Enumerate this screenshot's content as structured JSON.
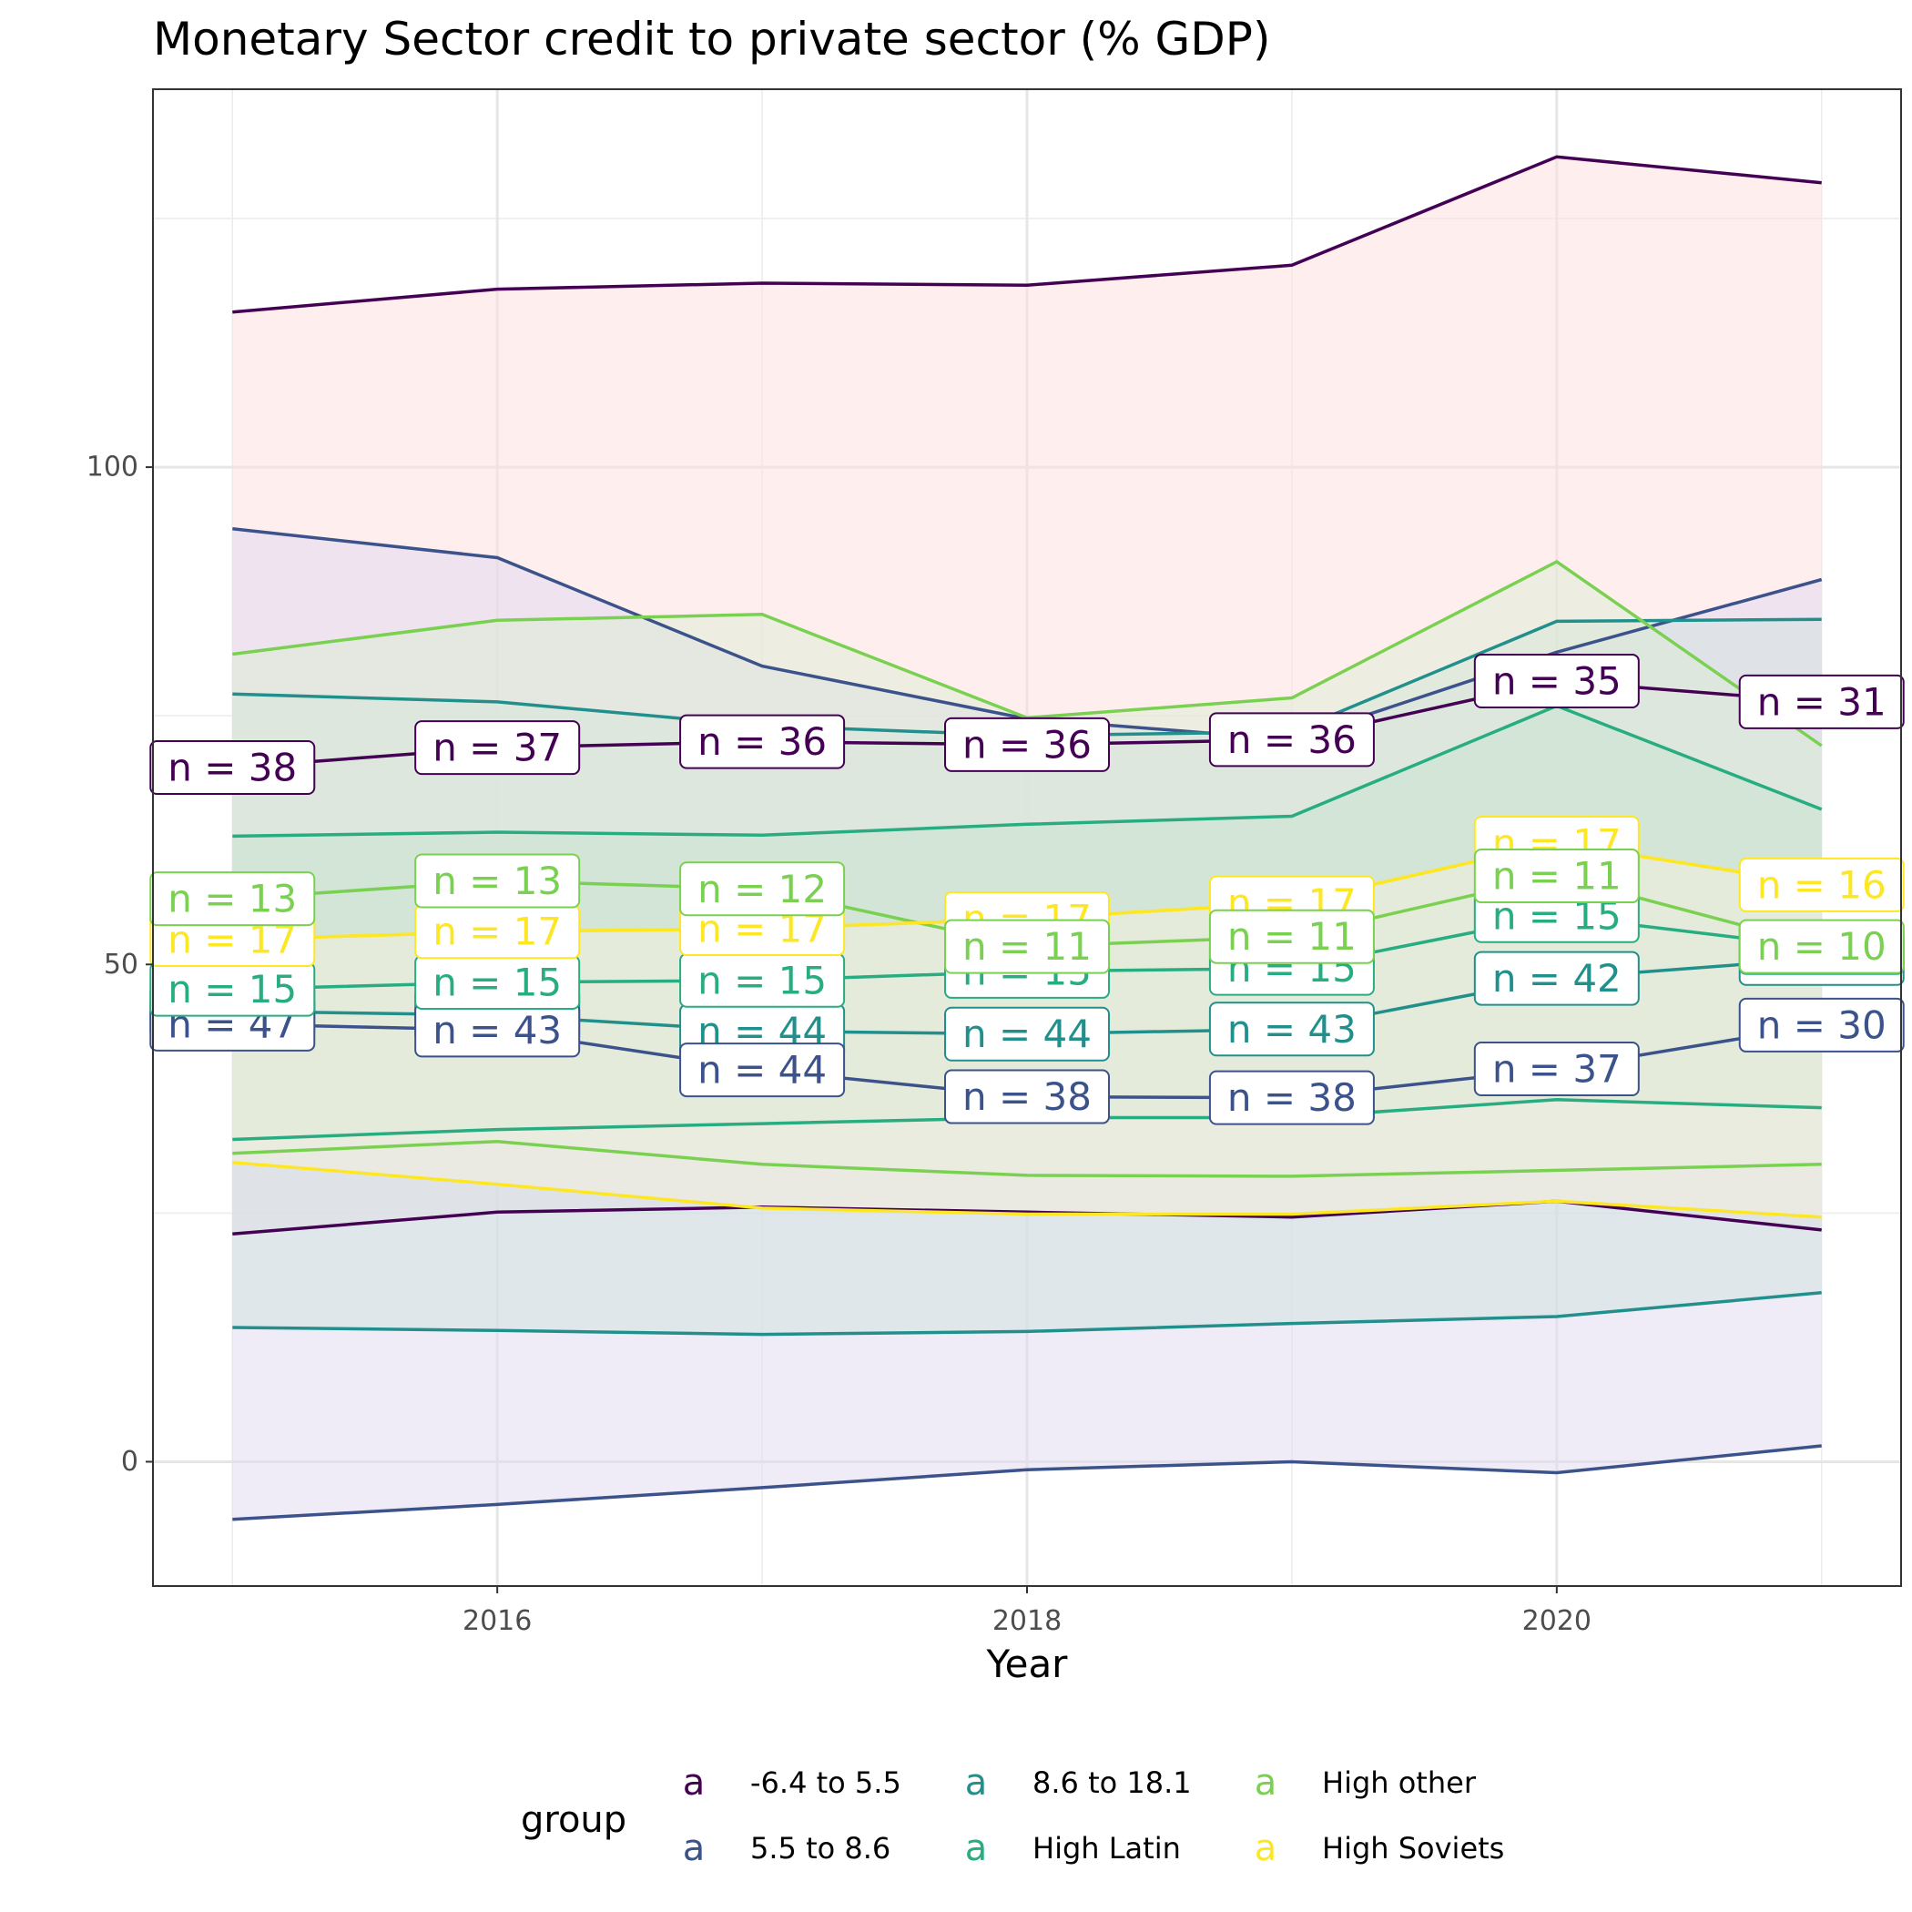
{
  "chart_data": {
    "type": "line",
    "title": "Monetary Sector credit to private sector (% GDP)",
    "xlabel": "Year",
    "ylabel": "",
    "x": [
      2015,
      2016,
      2017,
      2018,
      2019,
      2020,
      2021
    ],
    "xlim": [
      2014.7,
      2021.3
    ],
    "ylim": [
      -12.5,
      138
    ],
    "x_ticks": [
      2016,
      2018,
      2020
    ],
    "y_ticks": [
      0,
      50,
      100
    ],
    "grid": true,
    "legend": {
      "title": "group",
      "position": "bottom",
      "key_glyph": "a"
    },
    "series": [
      {
        "name": "-6.4 to 5.5",
        "color": "#440154",
        "fill": "#fde0dd",
        "median": [
          69.8,
          71.8,
          72.4,
          72.1,
          72.6,
          78.5,
          76.4
        ],
        "upper": [
          115.6,
          117.9,
          118.5,
          118.3,
          120.3,
          131.2,
          128.6
        ],
        "lower": [
          22.9,
          25.1,
          25.6,
          25.1,
          24.6,
          26.2,
          23.3
        ],
        "n": [
          38,
          37,
          36,
          36,
          36,
          35,
          31
        ]
      },
      {
        "name": "5.5 to 8.6",
        "color": "#3b528b",
        "fill": "#e0d8ef",
        "median": [
          44.0,
          43.4,
          39.4,
          36.7,
          36.6,
          39.5,
          43.9
        ],
        "upper": [
          93.8,
          90.9,
          80.0,
          74.7,
          72.6,
          81.4,
          88.7
        ],
        "lower": [
          -5.8,
          -4.3,
          -2.6,
          -0.8,
          0.0,
          -1.1,
          1.6
        ],
        "n": [
          47,
          43,
          44,
          38,
          38,
          37,
          30
        ]
      },
      {
        "name": "8.6 to 18.1",
        "color": "#21908d",
        "fill": "#cfe3df",
        "median": [
          45.3,
          44.9,
          43.3,
          43.0,
          43.5,
          48.6,
          50.6
        ],
        "upper": [
          77.2,
          76.4,
          74.0,
          73.0,
          73.4,
          84.5,
          84.7
        ],
        "lower": [
          13.5,
          13.2,
          12.8,
          13.1,
          13.9,
          14.6,
          17.0
        ],
        "n": [
          45,
          43,
          44,
          44,
          43,
          42,
          37
        ]
      },
      {
        "name": "High Latin",
        "color": "#27ad81",
        "fill": "#b8dcd0",
        "median": [
          47.5,
          48.2,
          48.4,
          49.3,
          49.6,
          54.9,
          51.7
        ],
        "upper": [
          62.9,
          63.3,
          63.0,
          64.1,
          64.9,
          76.0,
          65.6
        ],
        "lower": [
          32.4,
          33.4,
          34.0,
          34.6,
          34.6,
          36.4,
          35.6
        ],
        "n": [
          15,
          15,
          15,
          15,
          15,
          15,
          11
        ]
      },
      {
        "name": "High other",
        "color": "#7ad151",
        "fill": "#dcecd3",
        "median": [
          56.6,
          58.4,
          57.6,
          51.8,
          52.8,
          58.9,
          51.8
        ],
        "upper": [
          81.2,
          84.6,
          85.2,
          74.8,
          76.8,
          90.5,
          72.0
        ],
        "lower": [
          31.0,
          32.2,
          29.9,
          28.8,
          28.7,
          29.3,
          29.9
        ],
        "n": [
          13,
          13,
          12,
          11,
          11,
          11,
          10
        ]
      },
      {
        "name": "High Soviets",
        "color": "#fde725",
        "fill": "#f5f2e0",
        "median": [
          52.5,
          53.3,
          53.6,
          54.6,
          56.2,
          62.2,
          58.0
        ],
        "upper": [
          52.5,
          53.3,
          53.6,
          54.6,
          56.2,
          62.2,
          58.0
        ],
        "lower": [
          30.1,
          27.9,
          25.5,
          24.9,
          24.9,
          26.2,
          24.6
        ],
        "n": [
          17,
          17,
          17,
          17,
          17,
          17,
          16
        ]
      }
    ]
  }
}
